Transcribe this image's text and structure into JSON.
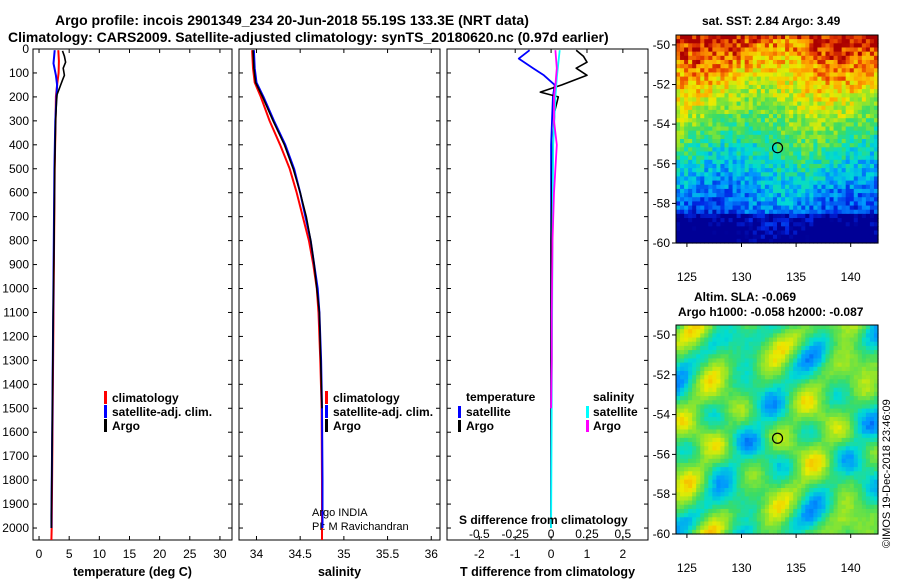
{
  "title": {
    "line1": "Argo profile: incois 2901349_234 20-Jun-2018 55.19S 133.3E (NRT data)",
    "line2": "Climatology: CARS2009. Satellite-adjusted climatology: synTS_20180620.nc (0.97d earlier)"
  },
  "colors": {
    "climatology": "#ff0000",
    "satellite": "#0000ff",
    "argo": "#000000",
    "sal_satellite": "#00ffff",
    "sal_argo": "#ff00ff"
  },
  "chart_data": [
    {
      "type": "line",
      "title": "",
      "xlabel": "temperature (deg C)",
      "ylabel": "",
      "xlim": [
        -1,
        32
      ],
      "ylim": [
        2050,
        0
      ],
      "xticks": [
        "0",
        "5",
        "10",
        "15",
        "20",
        "25",
        "30"
      ],
      "yticks": [
        "0",
        "100",
        "200",
        "300",
        "400",
        "500",
        "600",
        "700",
        "800",
        "900",
        "1000",
        "1100",
        "1200",
        "1300",
        "1400",
        "1500",
        "1600",
        "1700",
        "1800",
        "1900",
        "2000"
      ],
      "legend": [
        "climatology",
        "satellite-adj. clim.",
        "Argo"
      ],
      "series": [
        {
          "name": "climatology",
          "points": [
            [
              3.2,
              5
            ],
            [
              3.3,
              50
            ],
            [
              3.25,
              100
            ],
            [
              3.0,
              150
            ],
            [
              2.8,
              200
            ],
            [
              2.75,
              300
            ],
            [
              2.6,
              500
            ],
            [
              2.5,
              800
            ],
            [
              2.4,
              1100
            ],
            [
              2.3,
              1400
            ],
            [
              2.2,
              1700
            ],
            [
              2.1,
              2000
            ],
            [
              2.05,
              2050
            ]
          ]
        },
        {
          "name": "satellite-adj. clim.",
          "points": [
            [
              2.6,
              5
            ],
            [
              2.4,
              60
            ],
            [
              2.8,
              110
            ],
            [
              3.0,
              150
            ],
            [
              2.9,
              200
            ],
            [
              2.7,
              300
            ],
            [
              2.55,
              500
            ],
            [
              2.45,
              800
            ],
            [
              2.35,
              1100
            ],
            [
              2.25,
              1400
            ],
            [
              2.15,
              1700
            ],
            [
              2.05,
              1950
            ],
            [
              2.05,
              2000
            ]
          ]
        },
        {
          "name": "Argo",
          "points": [
            [
              3.9,
              8
            ],
            [
              4.2,
              30
            ],
            [
              4.4,
              55
            ],
            [
              4.0,
              80
            ],
            [
              4.2,
              110
            ],
            [
              3.9,
              130
            ],
            [
              3.6,
              150
            ],
            [
              3.3,
              170
            ],
            [
              3.0,
              190
            ],
            [
              2.9,
              220
            ],
            [
              2.75,
              300
            ],
            [
              2.6,
              500
            ],
            [
              2.5,
              800
            ],
            [
              2.35,
              1100
            ],
            [
              2.25,
              1400
            ],
            [
              2.15,
              1700
            ],
            [
              2.05,
              1950
            ],
            [
              2.05,
              2000
            ]
          ]
        }
      ]
    },
    {
      "type": "line",
      "title": "",
      "xlabel": "salinity",
      "ylabel": "",
      "xlim": [
        33.8,
        36.1
      ],
      "ylim": [
        2050,
        0
      ],
      "xticks": [
        "34",
        "34.5",
        "35",
        "35.5",
        "36"
      ],
      "legend": [
        "climatology",
        "satellite-adj. clim.",
        "Argo"
      ],
      "annotations": [
        "Argo INDIA",
        "PI: M Ravichandran"
      ],
      "series": [
        {
          "name": "climatology",
          "points": [
            [
              33.95,
              5
            ],
            [
              33.96,
              80
            ],
            [
              33.98,
              140
            ],
            [
              34.05,
              200
            ],
            [
              34.15,
              300
            ],
            [
              34.27,
              400
            ],
            [
              34.38,
              500
            ],
            [
              34.46,
              600
            ],
            [
              34.53,
              700
            ],
            [
              34.6,
              800
            ],
            [
              34.65,
              900
            ],
            [
              34.69,
              1000
            ],
            [
              34.71,
              1100
            ],
            [
              34.73,
              1300
            ],
            [
              34.745,
              1500
            ],
            [
              34.75,
              1800
            ],
            [
              34.75,
              2050
            ]
          ]
        },
        {
          "name": "satellite-adj. clim.",
          "points": [
            [
              33.97,
              5
            ],
            [
              33.98,
              80
            ],
            [
              34.0,
              140
            ],
            [
              34.08,
              200
            ],
            [
              34.2,
              300
            ],
            [
              34.33,
              400
            ],
            [
              34.43,
              500
            ],
            [
              34.5,
              600
            ],
            [
              34.56,
              700
            ],
            [
              34.62,
              800
            ],
            [
              34.66,
              900
            ],
            [
              34.7,
              1000
            ],
            [
              34.72,
              1100
            ],
            [
              34.74,
              1300
            ],
            [
              34.75,
              1500
            ],
            [
              34.755,
              1800
            ],
            [
              34.755,
              2000
            ]
          ]
        },
        {
          "name": "Argo",
          "points": [
            [
              33.96,
              5
            ],
            [
              33.97,
              80
            ],
            [
              33.99,
              140
            ],
            [
              34.07,
              200
            ],
            [
              34.19,
              300
            ],
            [
              34.32,
              400
            ],
            [
              34.42,
              500
            ],
            [
              34.5,
              600
            ],
            [
              34.57,
              700
            ],
            [
              34.62,
              800
            ],
            [
              34.66,
              900
            ],
            [
              34.69,
              1000
            ],
            [
              34.72,
              1100
            ],
            [
              34.735,
              1300
            ],
            [
              34.75,
              1500
            ]
          ]
        }
      ]
    },
    {
      "type": "line",
      "title": "",
      "xlabel": "T difference from climatology",
      "xlabel2": "S difference from climatology",
      "xlim": [
        -2.9,
        2.7
      ],
      "xlim_salinity": [
        -0.725,
        0.675
      ],
      "ylim": [
        2050,
        0
      ],
      "xticks": [
        "-2",
        "-1",
        "0",
        "1",
        "2"
      ],
      "xticks_salinity": [
        "-0.5",
        "-0.25",
        "0",
        "0.25",
        "0.5"
      ],
      "legend_left_title": "temperature",
      "legend_right_title": "salinity",
      "legend": [
        "satellite",
        "Argo"
      ],
      "series": [
        {
          "name": "temperature satellite",
          "points": [
            [
              -0.6,
              5
            ],
            [
              -0.9,
              40
            ],
            [
              -0.5,
              80
            ],
            [
              -0.2,
              110
            ],
            [
              0.1,
              150
            ],
            [
              0.05,
              200
            ],
            [
              0.0,
              400
            ],
            [
              0.0,
              800
            ],
            [
              0.0,
              1400
            ],
            [
              0.0,
              2000
            ]
          ]
        },
        {
          "name": "temperature Argo",
          "points": [
            [
              0.7,
              5
            ],
            [
              0.9,
              30
            ],
            [
              1.0,
              55
            ],
            [
              0.7,
              80
            ],
            [
              1.0,
              110
            ],
            [
              0.3,
              150
            ],
            [
              -0.3,
              180
            ],
            [
              0.2,
              200
            ],
            [
              0.1,
              260
            ],
            [
              0.05,
              400
            ],
            [
              0.0,
              800
            ],
            [
              0.0,
              1400
            ],
            [
              0.0,
              2000
            ]
          ]
        },
        {
          "name": "salinity satellite",
          "points": [
            [
              0.06,
              5
            ],
            [
              0.05,
              60
            ],
            [
              0.04,
              120
            ],
            [
              0.03,
              200
            ],
            [
              0.015,
              400
            ],
            [
              0.01,
              800
            ],
            [
              0.005,
              1400
            ],
            [
              0.0,
              2000
            ]
          ]
        },
        {
          "name": "salinity Argo",
          "points": [
            [
              0.03,
              5
            ],
            [
              0.04,
              80
            ],
            [
              0.03,
              150
            ],
            [
              0.02,
              200
            ],
            [
              0.02,
              300
            ],
            [
              0.04,
              400
            ],
            [
              0.03,
              500
            ],
            [
              0.02,
              600
            ],
            [
              0.01,
              800
            ],
            [
              0.005,
              1100
            ],
            [
              0.005,
              1300
            ],
            [
              0.0,
              1500
            ]
          ]
        }
      ]
    },
    {
      "type": "heatmap",
      "title": "sat. SST: 2.84  Argo: 3.49",
      "xlim": [
        124,
        142.5
      ],
      "ylim": [
        -60,
        -49.5
      ],
      "xticks": [
        "125",
        "130",
        "135",
        "140"
      ],
      "yticks": [
        "-50",
        "-52",
        "-54",
        "-56",
        "-58",
        "-60"
      ],
      "marker": {
        "lon": 133.3,
        "lat": -55.19
      }
    },
    {
      "type": "heatmap",
      "title": "Altim. SLA: -0.069",
      "title2": "Argo h1000: -0.058  h2000: -0.087",
      "xlim": [
        124,
        142.5
      ],
      "ylim": [
        -60,
        -49.5
      ],
      "xticks": [
        "125",
        "130",
        "135",
        "140"
      ],
      "yticks": [
        "-50",
        "-52",
        "-54",
        "-56",
        "-58",
        "-60"
      ],
      "marker": {
        "lon": 133.3,
        "lat": -55.19
      }
    }
  ],
  "credit": "©IMOS 19-Dec-2018 23:46:09"
}
